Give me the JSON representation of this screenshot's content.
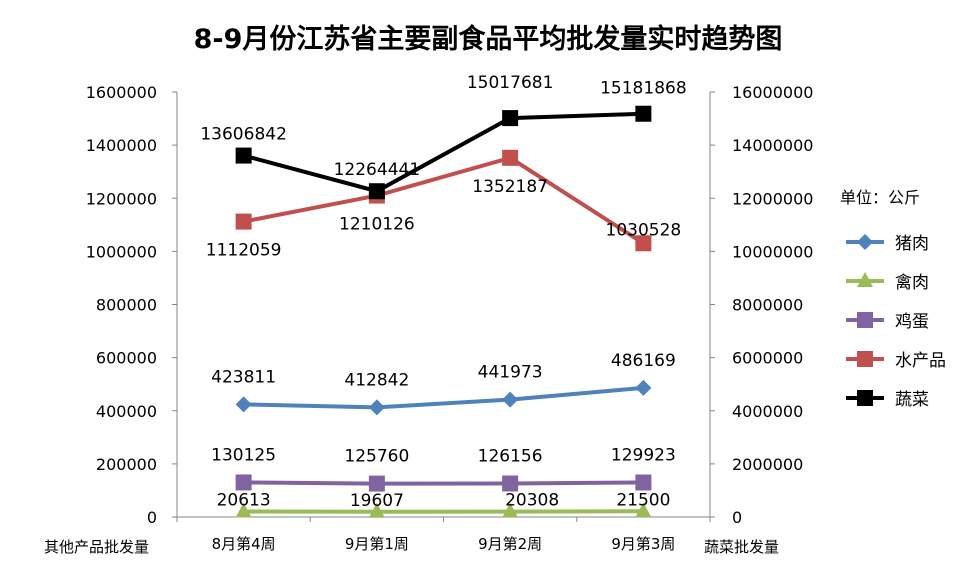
{
  "chart_data": {
    "type": "line",
    "title": "8-9月份江苏省主要副食品平均批发量实时趋势图",
    "unit_label": "单位：公斤",
    "ylabel_left": "其他产品批发量",
    "ylabel_right": "蔬菜批发量",
    "categories": [
      "8月第4周",
      "9月第1周",
      "9月第2周",
      "9月第3周"
    ],
    "ylim_left": [
      0,
      1600000
    ],
    "ylim_right": [
      0,
      16000000
    ],
    "yticks_left": [
      "0",
      "200000",
      "400000",
      "600000",
      "800000",
      "1000000",
      "1200000",
      "1400000",
      "1600000"
    ],
    "yticks_right": [
      "0",
      "2000000",
      "4000000",
      "6000000",
      "8000000",
      "10000000",
      "12000000",
      "14000000",
      "16000000"
    ],
    "grid": false,
    "legend_position": "right",
    "series": [
      {
        "name": "猪肉",
        "axis": "left",
        "marker": "diamond",
        "color": "#4F81BD",
        "values": [
          423811,
          412842,
          441973,
          486169
        ],
        "labels": [
          "423811",
          "412842",
          "441973",
          "486169"
        ]
      },
      {
        "name": "禽肉",
        "axis": "left",
        "marker": "triangle",
        "color": "#9BBB59",
        "values": [
          20613,
          19607,
          20308,
          21500
        ],
        "labels": [
          "20613",
          "19607",
          "20308",
          "21500"
        ]
      },
      {
        "name": "鸡蛋",
        "axis": "left",
        "marker": "square",
        "color": "#8064A2",
        "values": [
          130125,
          125760,
          126156,
          129923
        ],
        "labels": [
          "130125",
          "125760",
          "126156",
          "129923"
        ]
      },
      {
        "name": "水产品",
        "axis": "left",
        "marker": "square",
        "color": "#C0504D",
        "values": [
          1112059,
          1210126,
          1352187,
          1030528
        ],
        "labels": [
          "1112059",
          "1210126",
          "1352187",
          "1030528"
        ]
      },
      {
        "name": "蔬菜",
        "axis": "right",
        "marker": "square",
        "color": "#000000",
        "values": [
          13606842,
          12264441,
          15017681,
          15181868
        ],
        "labels": [
          "13606842",
          "12264441",
          "15017681",
          "15181868"
        ]
      }
    ]
  }
}
